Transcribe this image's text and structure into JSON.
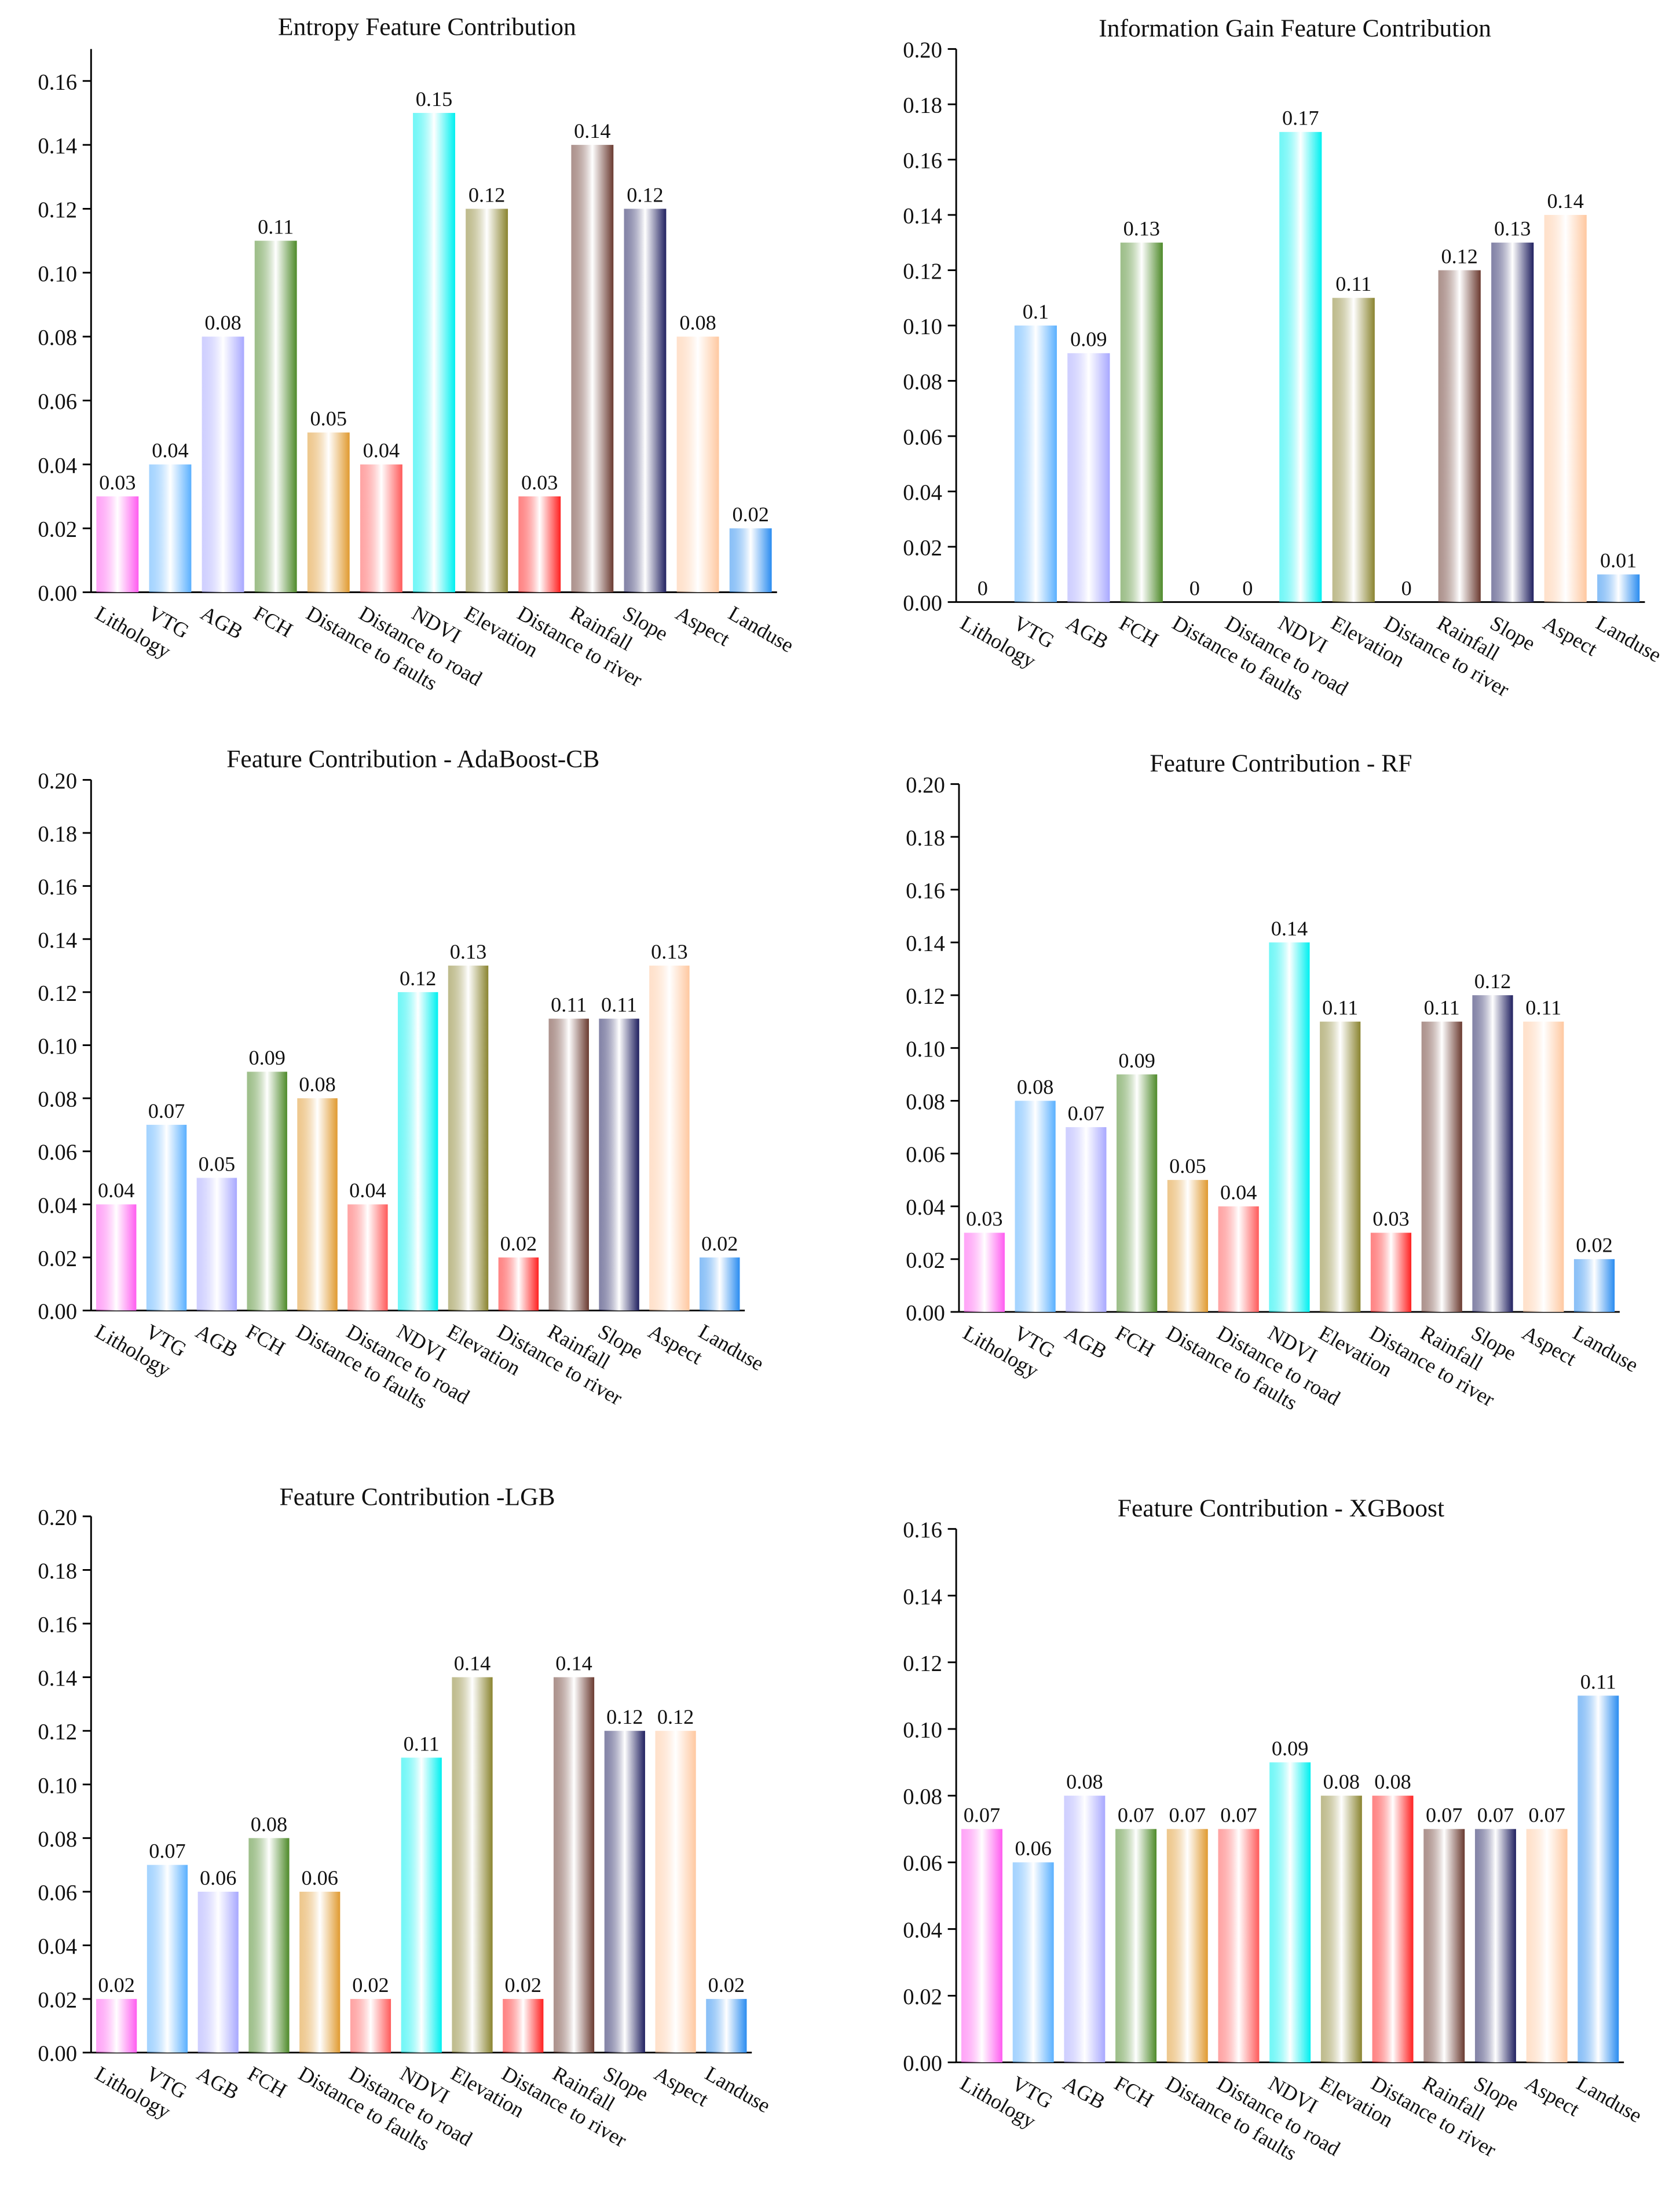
{
  "chart_data": [
    {
      "type": "bar",
      "title": "Entropy Feature Contribution",
      "categories": [
        "Lithology",
        "VTG",
        "AGB",
        "FCH",
        "Distance to faults",
        "Distance to road",
        "NDVI",
        "Elevation",
        "Distance to river",
        "Rainfall",
        "Slope",
        "Aspect",
        "Landuse"
      ],
      "values": [
        0.03,
        0.04,
        0.08,
        0.11,
        0.05,
        0.04,
        0.15,
        0.12,
        0.03,
        0.14,
        0.12,
        0.08,
        0.02
      ],
      "colors": [
        "#ff5cf0",
        "#5ab0ff",
        "#a8a8ff",
        "#4e8a2a",
        "#e09a30",
        "#ff5a5a",
        "#00f0f0",
        "#8a8430",
        "#ff2020",
        "#6a3a30",
        "#202060",
        "#ffc8a0",
        "#2a8cf0"
      ],
      "ylim": [
        0,
        0.17
      ],
      "yticks": [
        {
          "value": 0,
          "label": "0.00"
        },
        0.02,
        0.04,
        0.06,
        0.08,
        {
          "value": 0.1,
          "label": "0.10"
        },
        0.12,
        0.14,
        0.16
      ]
    },
    {
      "type": "bar",
      "title": "Information Gain Feature Contribution",
      "categories": [
        "Lithology",
        "VTG",
        "AGB",
        "FCH",
        "Distance to faults",
        "Distance to road",
        "NDVI",
        "Elevation",
        "Distance to river",
        "Rainfall",
        "Slope",
        "Aspect",
        "Landuse"
      ],
      "values": [
        0,
        0.1,
        0.09,
        0.13,
        0,
        0,
        0.17,
        0.11,
        0,
        0.12,
        0.13,
        0.14,
        0.01
      ],
      "colors": [
        "#ff5cf0",
        "#5ab0ff",
        "#a8a8ff",
        "#4e8a2a",
        "#e09a30",
        "#ff5a5a",
        "#00f0f0",
        "#8a8430",
        "#ff2020",
        "#6a3a30",
        "#202060",
        "#ffc8a0",
        "#2a8cf0"
      ],
      "ylim": [
        0,
        0.2
      ],
      "yticks": [
        {
          "value": 0,
          "label": "0.00"
        },
        0.02,
        0.04,
        0.06,
        0.08,
        {
          "value": 0.1,
          "label": "0.10"
        },
        0.12,
        0.14,
        0.16,
        0.18,
        {
          "value": 0.2,
          "label": "0.20"
        }
      ]
    },
    {
      "type": "bar",
      "title": "Feature Contribution - AdaBoost-CB",
      "categories": [
        "Lithology",
        "VTG",
        "AGB",
        "FCH",
        "Distance to faults",
        "Distance to road",
        "NDVI",
        "Elevation",
        "Distance to river",
        "Rainfall",
        "Slope",
        "Aspect",
        "Landuse"
      ],
      "values": [
        0.04,
        0.07,
        0.05,
        0.09,
        0.08,
        0.04,
        0.12,
        0.13,
        0.02,
        0.11,
        0.11,
        0.13,
        0.02
      ],
      "colors": [
        "#ff5cf0",
        "#5ab0ff",
        "#a8a8ff",
        "#4e8a2a",
        "#e09a30",
        "#ff5a5a",
        "#00f0f0",
        "#8a8430",
        "#ff2020",
        "#6a3a30",
        "#202060",
        "#ffc8a0",
        "#2a8cf0"
      ],
      "ylim": [
        0,
        0.2
      ],
      "yticks": [
        {
          "value": 0,
          "label": "0.00"
        },
        0.02,
        0.04,
        0.06,
        0.08,
        {
          "value": 0.1,
          "label": "0.10"
        },
        0.12,
        0.14,
        0.16,
        0.18,
        {
          "value": 0.2,
          "label": "0.20"
        }
      ]
    },
    {
      "type": "bar",
      "title": "Feature Contribution - RF",
      "categories": [
        "Lithology",
        "VTG",
        "AGB",
        "FCH",
        "Distance to faults",
        "Distance to road",
        "NDVI",
        "Elevation",
        "Distance to river",
        "Rainfall",
        "Slope",
        "Aspect",
        "Landuse"
      ],
      "values": [
        0.03,
        0.08,
        0.07,
        0.09,
        0.05,
        0.04,
        0.14,
        0.11,
        0.03,
        0.11,
        0.12,
        0.11,
        0.02
      ],
      "colors": [
        "#ff5cf0",
        "#5ab0ff",
        "#a8a8ff",
        "#4e8a2a",
        "#e09a30",
        "#ff5a5a",
        "#00f0f0",
        "#8a8430",
        "#ff2020",
        "#6a3a30",
        "#202060",
        "#ffc8a0",
        "#2a8cf0"
      ],
      "ylim": [
        0,
        0.2
      ],
      "yticks": [
        {
          "value": 0,
          "label": "0.00"
        },
        0.02,
        0.04,
        0.06,
        0.08,
        {
          "value": 0.1,
          "label": "0.10"
        },
        0.12,
        0.14,
        0.16,
        0.18,
        {
          "value": 0.2,
          "label": "0.20"
        }
      ]
    },
    {
      "type": "bar",
      "title": "Feature Contribution -LGB",
      "categories": [
        "Lithology",
        "VTG",
        "AGB",
        "FCH",
        "Distance to faults",
        "Distance to road",
        "NDVI",
        "Elevation",
        "Distance to river",
        "Rainfall",
        "Slope",
        "Aspect",
        "Landuse"
      ],
      "values": [
        0.02,
        0.07,
        0.06,
        0.08,
        0.06,
        0.02,
        0.11,
        0.14,
        0.02,
        0.14,
        0.12,
        0.12,
        0.02
      ],
      "colors": [
        "#ff5cf0",
        "#5ab0ff",
        "#a8a8ff",
        "#4e8a2a",
        "#e09a30",
        "#ff5a5a",
        "#00f0f0",
        "#8a8430",
        "#ff2020",
        "#6a3a30",
        "#202060",
        "#ffc8a0",
        "#2a8cf0"
      ],
      "ylim": [
        0,
        0.2
      ],
      "yticks": [
        {
          "value": 0,
          "label": "0.00"
        },
        0.02,
        0.04,
        0.06,
        0.08,
        {
          "value": 0.1,
          "label": "0.10"
        },
        0.12,
        0.14,
        0.16,
        0.18,
        {
          "value": 0.2,
          "label": "0.20"
        }
      ]
    },
    {
      "type": "bar",
      "title": "Feature Contribution - XGBoost",
      "categories": [
        "Lithology",
        "VTG",
        "AGB",
        "FCH",
        "Distance to faults",
        "Distance to road",
        "NDVI",
        "Elevation",
        "Distance to river",
        "Rainfall",
        "Slope",
        "Aspect",
        "Landuse"
      ],
      "values": [
        0.07,
        0.06,
        0.08,
        0.07,
        0.07,
        0.07,
        0.09,
        0.08,
        0.08,
        0.07,
        0.07,
        0.07,
        0.11
      ],
      "colors": [
        "#ff5cf0",
        "#5ab0ff",
        "#a8a8ff",
        "#4e8a2a",
        "#e09a30",
        "#ff5a5a",
        "#00f0f0",
        "#8a8430",
        "#ff2020",
        "#6a3a30",
        "#202060",
        "#ffc8a0",
        "#2a8cf0"
      ],
      "ylim": [
        0,
        0.16
      ],
      "yticks": [
        {
          "value": 0,
          "label": "0.00"
        },
        0.02,
        0.04,
        0.06,
        0.08,
        {
          "value": 0.1,
          "label": "0.10"
        },
        0.12,
        0.14,
        0.16
      ]
    }
  ]
}
